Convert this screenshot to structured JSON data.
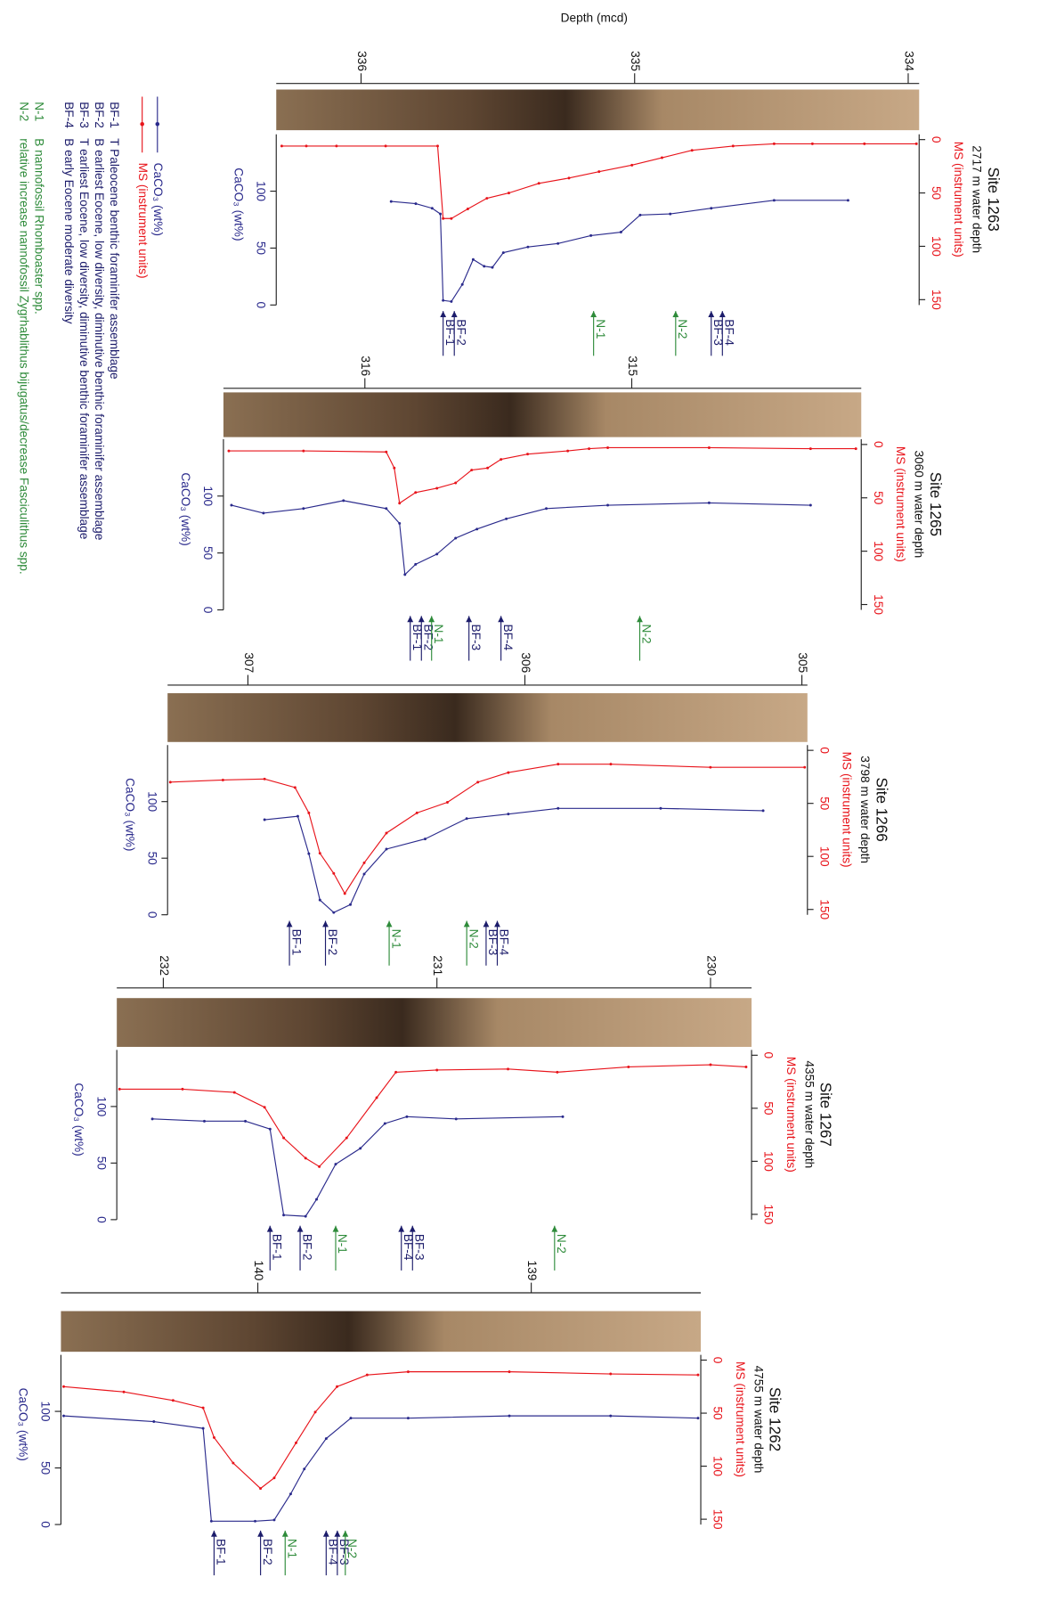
{
  "chart_data": [
    {
      "type": "line",
      "title": "Site 1263",
      "subtitle": "2717 m water depth",
      "x_label": "Depth (mcd)",
      "xlim": [
        336.31,
        333.96
      ],
      "xticks": [
        336,
        335,
        334
      ],
      "ylim": [
        -5,
        155
      ],
      "yticks": [
        0,
        50,
        100,
        150
      ],
      "yinvert": true,
      "y2lim": [
        0,
        150
      ],
      "y2ticks": [
        0,
        50,
        100
      ],
      "series": [
        {
          "name": "MS (instrument units)",
          "color": "#e8141b",
          "x": [
            336.29,
            336.2,
            336.09,
            335.91,
            335.72,
            335.7,
            335.67,
            335.61,
            335.54,
            335.46,
            335.35,
            335.24,
            335.13,
            335.01,
            334.9,
            334.79,
            334.64,
            334.49,
            334.35,
            334.16,
            333.97
          ],
          "values": [
            6,
            6,
            6,
            6,
            6,
            74,
            74,
            65,
            55,
            50,
            41,
            36,
            30,
            24,
            17,
            10,
            6,
            4,
            4,
            4,
            4
          ]
        },
        {
          "name": "CaCO₃ (wt%)",
          "color": "#2a2a8c",
          "axis": "y2",
          "x": [
            335.89,
            335.8,
            335.74,
            335.71,
            335.7,
            335.67,
            335.63,
            335.59,
            335.55,
            335.52,
            335.48,
            335.39,
            335.28,
            335.16,
            335.05,
            334.98,
            334.87,
            334.72,
            334.49,
            334.22
          ],
          "values": [
            91,
            89,
            85,
            80,
            4,
            3,
            18,
            40,
            34,
            33,
            46,
            51,
            54,
            61,
            64,
            79,
            80,
            85,
            92,
            92
          ]
        }
      ],
      "markers": [
        {
          "label": "BF-1",
          "depth": 335.7,
          "color": "#1c1c6b"
        },
        {
          "label": "BF-2",
          "depth": 335.7,
          "color": "#1c1c6b"
        },
        {
          "label": "N-1",
          "depth": 335.15,
          "color": "#2e8b3a"
        },
        {
          "label": "N-2",
          "depth": 334.85,
          "color": "#2e8b3a"
        },
        {
          "label": "BF-3",
          "depth": 334.72,
          "color": "#1c1c6b"
        },
        {
          "label": "BF-4",
          "depth": 334.72,
          "color": "#1c1c6b"
        }
      ]
    },
    {
      "type": "line",
      "title": "Site 1265",
      "subtitle": "3060 m water depth",
      "xlim": [
        316.53,
        314.14
      ],
      "xticks": [
        316,
        315
      ],
      "ylim": [
        -5,
        155
      ],
      "yticks": [
        0,
        50,
        100,
        150
      ],
      "yinvert": true,
      "y2lim": [
        0,
        150
      ],
      "y2ticks": [
        0,
        50,
        100
      ],
      "series": [
        {
          "name": "MS (instrument units)",
          "color": "#e8141b",
          "x": [
            316.51,
            316.23,
            315.92,
            315.89,
            315.87,
            315.81,
            315.73,
            315.66,
            315.6,
            315.54,
            315.49,
            315.39,
            315.24,
            315.16,
            315.09,
            314.71,
            314.33,
            314.16
          ],
          "values": [
            6,
            6,
            7,
            22,
            55,
            45,
            41,
            36,
            24,
            22,
            14,
            9,
            6,
            4,
            3,
            3,
            4,
            4
          ]
        },
        {
          "name": "CaCO₃ (wt%)",
          "color": "#2a2a8c",
          "axis": "y2",
          "x": [
            316.5,
            316.38,
            316.23,
            316.08,
            315.92,
            315.87,
            315.85,
            315.81,
            315.73,
            315.66,
            315.58,
            315.47,
            315.32,
            315.09,
            314.71,
            314.33
          ],
          "values": [
            92,
            85,
            89,
            96,
            89,
            76,
            31,
            40,
            49,
            63,
            71,
            80,
            89,
            92,
            94,
            92
          ]
        }
      ],
      "markers": [
        {
          "label": "BF-1",
          "depth": 315.83,
          "color": "#1c1c6b"
        },
        {
          "label": "BF-2",
          "depth": 315.83,
          "color": "#1c1c6b"
        },
        {
          "label": "N-1",
          "depth": 315.75,
          "color": "#2e8b3a"
        },
        {
          "label": "BF-3",
          "depth": 315.61,
          "color": "#1c1c6b"
        },
        {
          "label": "BF-4",
          "depth": 315.49,
          "color": "#1c1c6b"
        },
        {
          "label": "N-2",
          "depth": 314.97,
          "color": "#2e8b3a"
        }
      ]
    },
    {
      "type": "line",
      "title": "Site 1266",
      "subtitle": "3798 m water depth",
      "xlim": [
        307.29,
        304.98
      ],
      "xticks": [
        307,
        306,
        305
      ],
      "ylim": [
        -5,
        155
      ],
      "yticks": [
        0,
        50,
        100,
        150
      ],
      "yinvert": true,
      "y2lim": [
        0,
        150
      ],
      "y2ticks": [
        0,
        50,
        100
      ],
      "series": [
        {
          "name": "MS (instrument units)",
          "color": "#e8141b",
          "x": [
            307.28,
            307.09,
            306.94,
            306.83,
            306.78,
            306.74,
            306.69,
            306.65,
            306.58,
            306.5,
            306.39,
            306.28,
            306.17,
            306.06,
            305.88,
            305.69,
            305.33,
            304.99
          ],
          "values": [
            30,
            28,
            27,
            35,
            59,
            97,
            116,
            135,
            106,
            78,
            59,
            49,
            30,
            21,
            13,
            13,
            16,
            16
          ]
        },
        {
          "name": "CaCO₃ (wt%)",
          "color": "#2a2a8c",
          "axis": "y2",
          "x": [
            306.94,
            306.82,
            306.78,
            306.74,
            306.69,
            306.63,
            306.58,
            306.5,
            306.36,
            306.21,
            306.06,
            305.88,
            305.51,
            305.14
          ],
          "values": [
            84,
            87,
            54,
            13,
            2,
            9,
            36,
            58,
            67,
            85,
            89,
            94,
            94,
            92
          ]
        }
      ],
      "markers": [
        {
          "label": "BF-1",
          "depth": 306.85,
          "color": "#1c1c6b"
        },
        {
          "label": "BF-2",
          "depth": 306.72,
          "color": "#1c1c6b"
        },
        {
          "label": "N-1",
          "depth": 306.49,
          "color": "#2e8b3a"
        },
        {
          "label": "N-2",
          "depth": 306.21,
          "color": "#2e8b3a"
        },
        {
          "label": "BF-3",
          "depth": 306.14,
          "color": "#1c1c6b"
        },
        {
          "label": "BF-4",
          "depth": 306.14,
          "color": "#1c1c6b"
        }
      ]
    },
    {
      "type": "line",
      "title": "Site 1267",
      "subtitle": "4355 m water depth",
      "xlim": [
        232.17,
        229.85
      ],
      "xticks": [
        232,
        231,
        230
      ],
      "ylim": [
        -5,
        155
      ],
      "yticks": [
        0,
        50,
        100,
        150
      ],
      "yinvert": true,
      "y2lim": [
        0,
        150
      ],
      "y2ticks": [
        0,
        50,
        100
      ],
      "series": [
        {
          "name": "MS (instrument units)",
          "color": "#e8141b",
          "x": [
            232.16,
            231.93,
            231.74,
            231.63,
            231.56,
            231.48,
            231.43,
            231.33,
            231.22,
            231.15,
            231.0,
            230.74,
            230.56,
            230.3,
            230.0,
            229.87
          ],
          "values": [
            32,
            32,
            35,
            49,
            78,
            97,
            105,
            78,
            40,
            16,
            14,
            13,
            16,
            11,
            9,
            11
          ]
        },
        {
          "name": "CaCO₃ (wt%)",
          "color": "#2a2a8c",
          "axis": "y2",
          "x": [
            232.04,
            231.85,
            231.7,
            231.61,
            231.56,
            231.48,
            231.44,
            231.37,
            231.28,
            231.19,
            231.11,
            230.93,
            230.54
          ],
          "values": [
            89,
            87,
            87,
            80,
            4,
            3,
            18,
            49,
            63,
            85,
            91,
            89,
            91
          ]
        }
      ],
      "markers": [
        {
          "label": "BF-1",
          "depth": 231.61,
          "color": "#1c1c6b"
        },
        {
          "label": "BF-2",
          "depth": 231.5,
          "color": "#1c1c6b"
        },
        {
          "label": "N-1",
          "depth": 231.37,
          "color": "#2e8b3a"
        },
        {
          "label": "BF-4",
          "depth": 231.13,
          "color": "#1c1c6b"
        },
        {
          "label": "BF-3",
          "depth": 231.13,
          "color": "#1c1c6b"
        },
        {
          "label": "N-2",
          "depth": 230.57,
          "color": "#2e8b3a"
        }
      ]
    },
    {
      "type": "line",
      "title": "Site 1262",
      "subtitle": "4755 m water depth",
      "xlim": [
        140.72,
        138.38
      ],
      "xticks": [
        140,
        139
      ],
      "ylim": [
        -5,
        155
      ],
      "yticks": [
        0,
        50,
        100,
        150
      ],
      "yinvert": true,
      "y2lim": [
        0,
        150
      ],
      "y2ticks": [
        0,
        50,
        100
      ],
      "series": [
        {
          "name": "MS (instrument units)",
          "color": "#e8141b",
          "x": [
            140.71,
            140.49,
            140.31,
            140.2,
            140.16,
            140.09,
            139.99,
            139.94,
            139.86,
            139.79,
            139.71,
            139.6,
            139.45,
            139.08,
            138.71,
            138.39
          ],
          "values": [
            25,
            30,
            38,
            45,
            73,
            97,
            121,
            111,
            78,
            49,
            25,
            14,
            11,
            11,
            13,
            14
          ]
        },
        {
          "name": "CaCO₃ (wt%)",
          "color": "#2a2a8c",
          "axis": "y2",
          "x": [
            140.71,
            140.38,
            140.2,
            140.17,
            140.01,
            139.94,
            139.88,
            139.83,
            139.75,
            139.66,
            139.45,
            139.08,
            138.71,
            138.39
          ],
          "values": [
            96,
            91,
            85,
            3,
            3,
            4,
            27,
            49,
            76,
            94,
            94,
            96,
            96,
            94
          ]
        }
      ],
      "markers": [
        {
          "label": "BF-1",
          "depth": 140.16,
          "color": "#1c1c6b"
        },
        {
          "label": "BF-2",
          "depth": 139.99,
          "color": "#1c1c6b"
        },
        {
          "label": "N-1",
          "depth": 139.9,
          "color": "#2e8b3a"
        },
        {
          "label": "BF-4",
          "depth": 139.75,
          "color": "#1c1c6b"
        },
        {
          "label": "BF-3",
          "depth": 139.75,
          "color": "#1c1c6b"
        },
        {
          "label": "N-2",
          "depth": 139.68,
          "color": "#2e8b3a"
        }
      ]
    }
  ],
  "legend_notes": [
    {
      "code": "BF-1",
      "text": "T Paleocene benthic foraminifer assemblage",
      "color": "#1c1c6b"
    },
    {
      "code": "BF-2",
      "text": "B earliest Eocene, low diversity, diminutive benthic foraminifer assemblage",
      "color": "#1c1c6b"
    },
    {
      "code": "BF-3",
      "text": "T earliest Eocene, low diversity, diminutive benthic foraminifer assemblage",
      "color": "#1c1c6b"
    },
    {
      "code": "BF-4",
      "text": "B early Eocene moderate diversity",
      "color": "#1c1c6b"
    },
    {
      "code": "N-1",
      "text": "B nannofossil Rhomboaster spp.",
      "color": "#2e8b3a"
    },
    {
      "code": "N-2",
      "text": "relative increase nannofossil Zygrhablithus bijugatus/decrease Fasciculithus spp.",
      "color": "#2e8b3a"
    }
  ]
}
